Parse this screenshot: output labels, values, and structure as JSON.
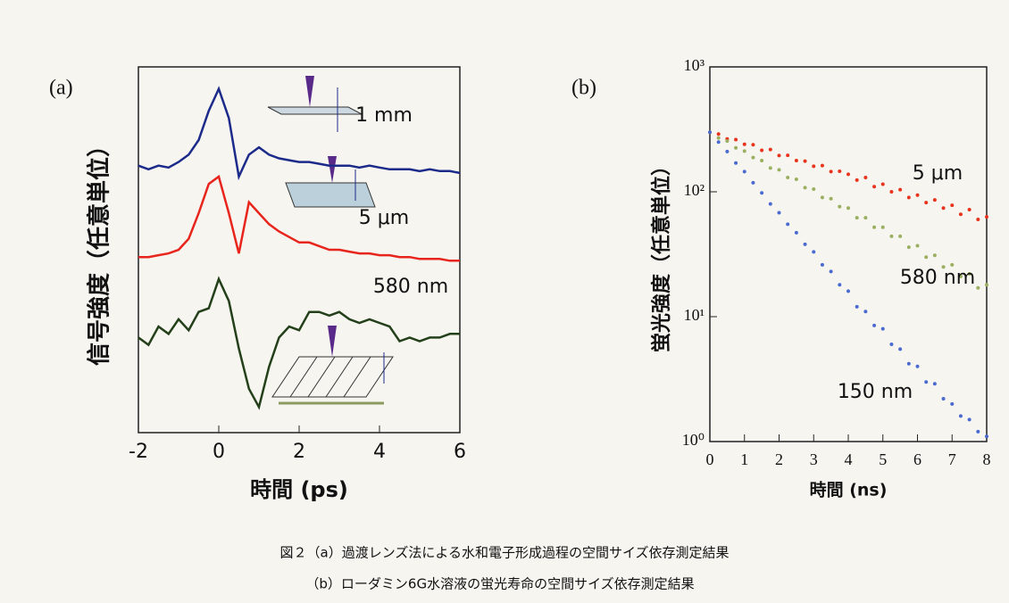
{
  "chart_data": [
    {
      "type": "line",
      "panel": "(a)",
      "xlabel": "時間 (ps)",
      "ylabel": "信号強度（任意単位）",
      "x": [
        -2,
        -1.75,
        -1.5,
        -1.25,
        -1,
        -0.75,
        -0.5,
        -0.25,
        0,
        0.25,
        0.5,
        0.75,
        1,
        1.25,
        1.5,
        1.75,
        2,
        2.25,
        2.5,
        2.75,
        3,
        3.25,
        3.5,
        3.75,
        4,
        4.25,
        4.5,
        4.75,
        5,
        5.25,
        5.5,
        5.75,
        6
      ],
      "xlim": [
        -2,
        6
      ],
      "xticks": [
        -2,
        0,
        2,
        4,
        6
      ],
      "ylim": [
        0,
        10
      ],
      "series": [
        {
          "name": "1 mm",
          "color": "#1c2a8a",
          "values": [
            7.3,
            7.2,
            7.3,
            7.25,
            7.4,
            7.6,
            8.0,
            8.8,
            9.4,
            8.6,
            7.0,
            7.6,
            7.8,
            7.6,
            7.5,
            7.45,
            7.4,
            7.4,
            7.35,
            7.3,
            7.3,
            7.3,
            7.25,
            7.3,
            7.25,
            7.2,
            7.2,
            7.2,
            7.15,
            7.2,
            7.15,
            7.15,
            7.1
          ]
        },
        {
          "name": "5 μm",
          "color": "#e8251c",
          "values": [
            4.8,
            4.8,
            4.85,
            4.9,
            5.0,
            5.3,
            6.0,
            6.8,
            7.0,
            6.0,
            4.9,
            6.3,
            6.0,
            5.7,
            5.5,
            5.35,
            5.2,
            5.2,
            5.1,
            5.0,
            5.0,
            4.95,
            4.9,
            4.9,
            4.85,
            4.85,
            4.8,
            4.8,
            4.75,
            4.75,
            4.75,
            4.7,
            4.7
          ]
        },
        {
          "name": "580 nm",
          "color": "#24401a",
          "values": [
            2.6,
            2.4,
            2.9,
            2.7,
            3.1,
            2.8,
            3.3,
            3.4,
            4.2,
            3.6,
            2.3,
            1.2,
            0.7,
            1.8,
            2.6,
            2.9,
            2.8,
            3.3,
            3.3,
            3.2,
            3.3,
            3.1,
            3.0,
            3.1,
            3.0,
            2.9,
            2.5,
            2.6,
            2.5,
            2.6,
            2.6,
            2.7,
            2.7
          ]
        }
      ]
    },
    {
      "type": "scatter",
      "panel": "(b)",
      "xlabel": "時間 (ns)",
      "ylabel": "蛍光強度（任意単位）",
      "log_y": true,
      "x": [
        0,
        0.25,
        0.5,
        0.75,
        1,
        1.25,
        1.5,
        1.75,
        2,
        2.25,
        2.5,
        2.75,
        3,
        3.25,
        3.5,
        3.75,
        4,
        4.25,
        4.5,
        4.75,
        5,
        5.25,
        5.5,
        5.75,
        6,
        6.25,
        6.5,
        6.75,
        7,
        7.25,
        7.5,
        7.75,
        8
      ],
      "xlim": [
        0,
        8
      ],
      "xticks": [
        0,
        1,
        2,
        3,
        4,
        5,
        6,
        7,
        8
      ],
      "ylim": [
        1,
        1000
      ],
      "yticks": [
        {
          "value": 1,
          "label": "10⁰"
        },
        {
          "value": 10,
          "label": "10¹"
        },
        {
          "value": 100,
          "label": "10²"
        },
        {
          "value": 1000,
          "label": "10³"
        }
      ],
      "series": [
        {
          "name": "5 μm",
          "color": "#e8341c",
          "values": [
            300,
            290,
            265,
            262,
            240,
            238,
            215,
            218,
            195,
            196,
            178,
            176,
            160,
            162,
            145,
            146,
            138,
            124,
            130,
            110,
            115,
            100,
            104,
            90,
            94,
            82,
            86,
            74,
            78,
            66,
            72,
            60,
            63
          ]
        },
        {
          "name": "580 nm",
          "color": "#9ab060",
          "values": [
            300,
            270,
            255,
            225,
            212,
            188,
            178,
            155,
            150,
            130,
            126,
            108,
            105,
            90,
            88,
            76,
            74,
            62,
            62,
            52,
            52,
            44,
            44,
            36,
            37,
            30,
            31,
            25,
            26,
            21,
            22,
            17,
            18
          ]
        },
        {
          "name": "150 nm",
          "color": "#4a6ad0",
          "values": [
            300,
            250,
            210,
            170,
            145,
            118,
            98,
            80,
            68,
            55,
            47,
            38,
            33,
            26,
            23,
            18,
            16,
            12,
            11,
            8.5,
            8,
            6,
            5.5,
            4.2,
            4,
            3,
            2.9,
            2.2,
            2,
            1.6,
            1.5,
            1.2,
            1.1
          ]
        }
      ]
    }
  ],
  "caption": [
    "図２（a）過渡レンズ法による水和電子形成過程の空間サイズ依存測定結果",
    "（b）ローダミン6G水溶液の蛍光寿命の空間サイズ依存測定結果"
  ]
}
